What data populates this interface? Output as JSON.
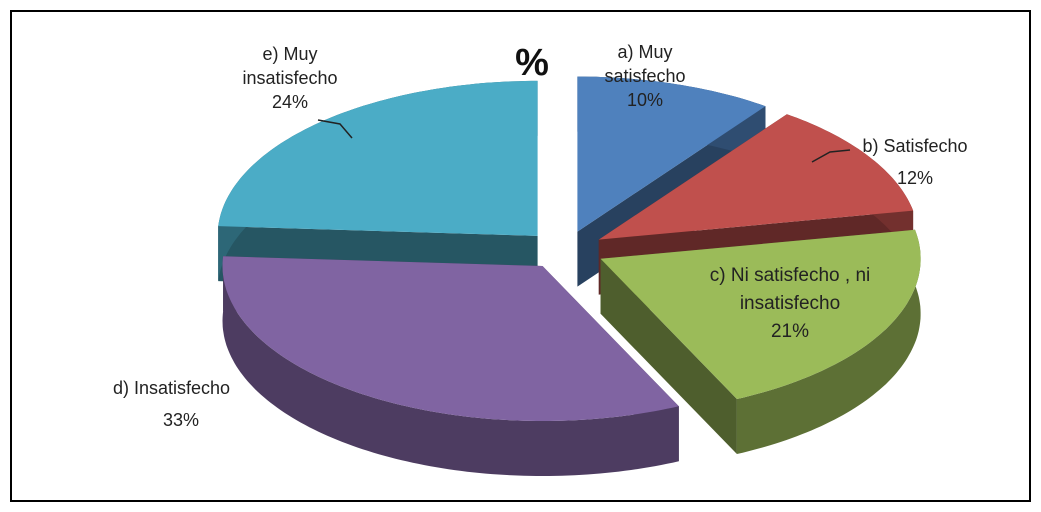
{
  "chart_data": {
    "type": "pie",
    "title": "%",
    "categories": [
      "a) Muy satisfecho",
      "b) Satisfecho",
      "c) Ni satisfecho , ni insatisfecho",
      "d) Insatisfecho",
      "e) Muy insatisfecho"
    ],
    "values": [
      10,
      12,
      21,
      33,
      24
    ],
    "value_labels": [
      "10%",
      "12%",
      "21%",
      "33%",
      "24%"
    ],
    "colors": [
      "#4f81bd",
      "#c0504d",
      "#9bbb59",
      "#8064a2",
      "#4bacc6"
    ]
  }
}
